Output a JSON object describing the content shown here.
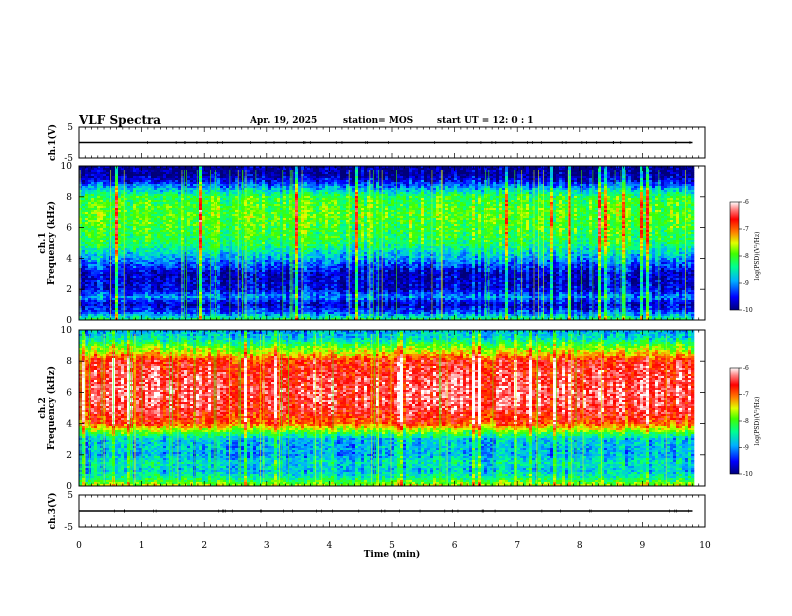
{
  "header": {
    "title": "VLF Spectra",
    "date": "Apr. 19, 2025",
    "station": "station= MOS",
    "start": "start  UT =   12: 0  : 1"
  },
  "colorbar": {
    "ticks": [
      "-6",
      "-7",
      "-8",
      "-9",
      "-10"
    ],
    "label": "log(PSD)(V²/Hz)",
    "colors": [
      "#00007a",
      "#0000ff",
      "#00b0ff",
      "#00ff90",
      "#40ff00",
      "#e0ff00",
      "#ff8000",
      "#ff0000",
      "#ff8080",
      "#ffffff"
    ]
  },
  "chart_data": [
    {
      "type": "line",
      "name": "ch.1(V)",
      "ylabel": "ch.1(V)",
      "yticks": [
        "5",
        "-5"
      ],
      "ylim": [
        -5,
        5
      ],
      "x": [
        0,
        1,
        2,
        3,
        4,
        5,
        6,
        7,
        8,
        9,
        9.8
      ],
      "values": [
        0,
        0,
        0,
        0,
        0,
        0,
        0,
        0,
        0,
        0,
        0
      ]
    },
    {
      "type": "heatmap",
      "name": "ch.1 spectrogram",
      "ylabel": "ch.1 Frequency (kHz)",
      "ylim": [
        0,
        10
      ],
      "yticks": [
        "0",
        "2",
        "4",
        "6",
        "8",
        "10"
      ],
      "freq_bands_khz": [
        0,
        0.5,
        1,
        1.5,
        2,
        3,
        4,
        5,
        6,
        7,
        8,
        9,
        9.5,
        10
      ],
      "band_log_psd": [
        -8.2,
        -9.2,
        -9.7,
        -9.0,
        -9.6,
        -9.7,
        -8.9,
        -8.2,
        -8.0,
        -7.9,
        -8.1,
        -9.5,
        -9.9,
        -9.9
      ]
    },
    {
      "type": "heatmap",
      "name": "ch.2 spectrogram",
      "ylabel": "ch.2 Frequency (kHz)",
      "ylim": [
        0,
        10
      ],
      "yticks": [
        "0",
        "2",
        "4",
        "6",
        "8",
        "10"
      ],
      "freq_bands_khz": [
        0,
        0.5,
        1,
        1.5,
        2,
        3,
        3.5,
        4,
        5,
        6,
        7,
        8,
        8.5,
        9,
        9.5,
        10
      ],
      "band_log_psd": [
        -7.6,
        -8.4,
        -8.8,
        -8.6,
        -8.9,
        -8.8,
        -7.9,
        -6.9,
        -6.5,
        -6.4,
        -6.5,
        -6.7,
        -7.4,
        -8.0,
        -8.7,
        -8.9
      ]
    },
    {
      "type": "line",
      "name": "ch.3(V)",
      "ylabel": "ch.3(V)",
      "yticks": [
        "5",
        "-5"
      ],
      "ylim": [
        -5,
        5
      ],
      "xlabel": "Time  (min)",
      "xticks": [
        "0",
        "1",
        "2",
        "3",
        "4",
        "5",
        "6",
        "7",
        "8",
        "9",
        "10"
      ],
      "xlim": [
        0,
        10
      ],
      "x": [
        0,
        1,
        2,
        3,
        4,
        5,
        6,
        7,
        8,
        9,
        9.8
      ],
      "values": [
        0,
        0,
        0,
        0,
        0,
        0,
        0,
        0,
        0,
        0,
        0
      ]
    }
  ]
}
